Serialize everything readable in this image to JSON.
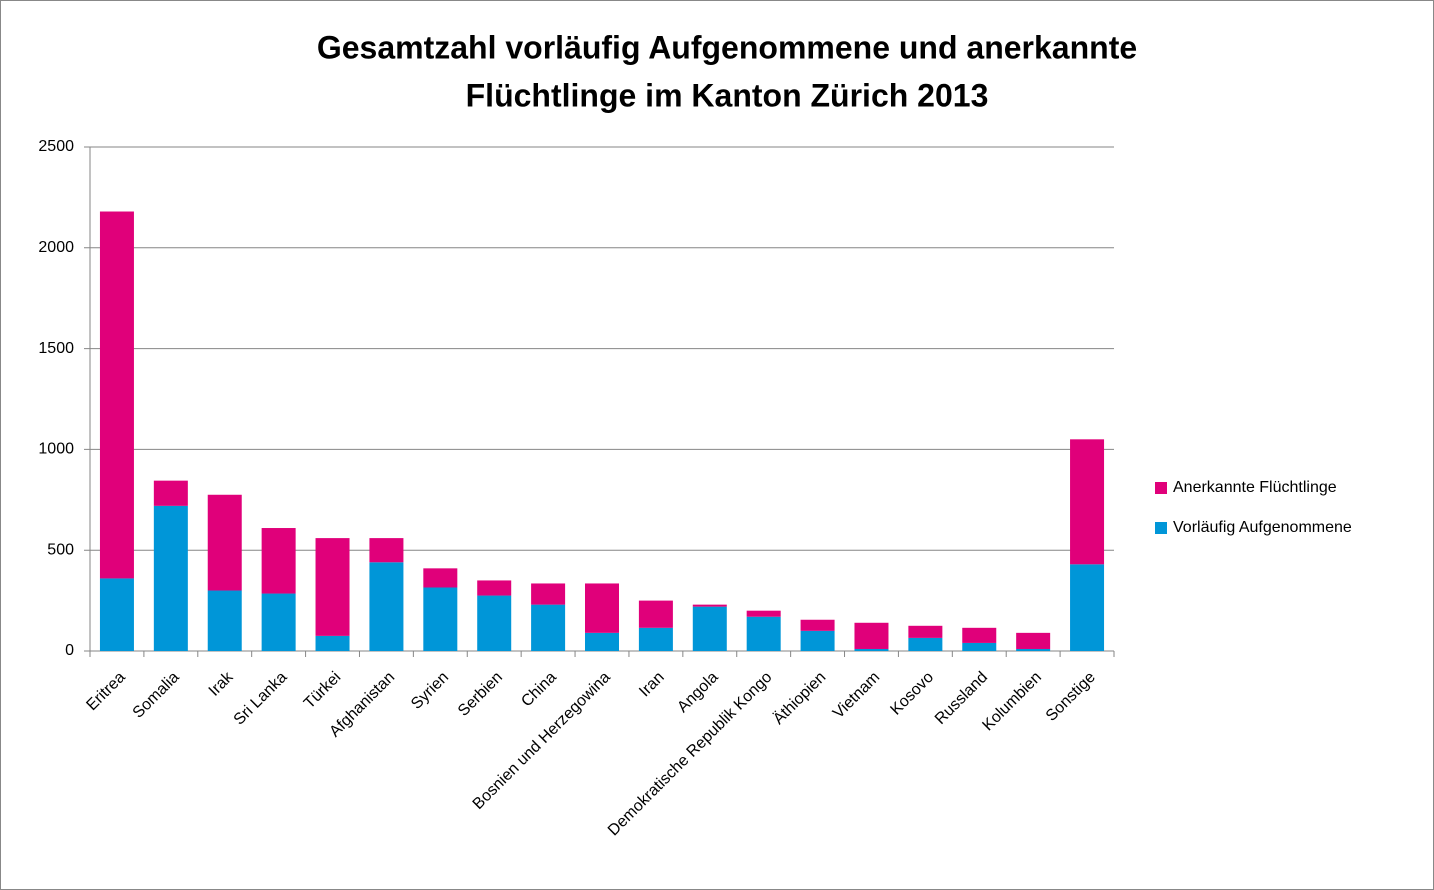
{
  "chart_data": {
    "type": "stacked_bar",
    "title": [
      "Gesamtzahl vorläufig Aufgenommene und anerkannte",
      "Flüchtlinge im Kanton Zürich 2013"
    ],
    "categories": [
      "Eritrea",
      "Somalia",
      "Irak",
      "Sri Lanka",
      "Türkei",
      "Afghanistan",
      "Syrien",
      "Serbien",
      "China",
      "Bosnien und Herzegowina",
      "Iran",
      "Angola",
      "Demokratische Republik Kongo",
      "Äthiopien",
      "Vietnam",
      "Kosovo",
      "Russland",
      "Kolumbien",
      "Sonstige"
    ],
    "series": [
      {
        "name": "Vorläufig Aufgenommene",
        "color": "#0096d8",
        "values": [
          360,
          720,
          300,
          285,
          75,
          440,
          315,
          275,
          230,
          90,
          115,
          220,
          170,
          100,
          10,
          65,
          40,
          10,
          430
        ]
      },
      {
        "name": "Anerkannte Flüchtlinge",
        "color": "#e0007a",
        "values": [
          1820,
          125,
          475,
          325,
          485,
          120,
          95,
          75,
          105,
          245,
          135,
          10,
          30,
          55,
          130,
          60,
          75,
          80,
          620
        ]
      }
    ],
    "ylim": [
      0,
      2500
    ],
    "yticks": [
      0,
      500,
      1000,
      1500,
      2000,
      2500
    ],
    "grid": true,
    "legend": "right"
  }
}
